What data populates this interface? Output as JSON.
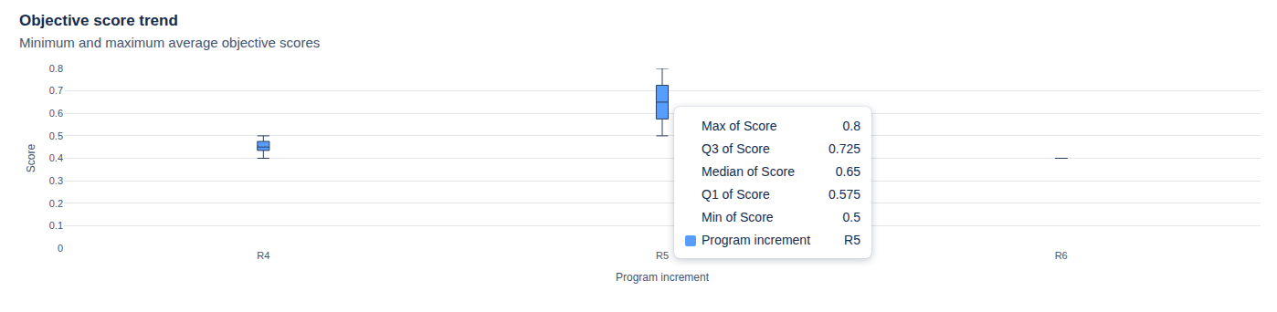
{
  "chart_data": {
    "type": "box",
    "title": "Objective score trend",
    "subtitle": "Minimum and maximum average objective scores",
    "x_label": "Program increment",
    "y_label": "Score",
    "categories": [
      "R4",
      "R5",
      "R6"
    ],
    "stats": {
      "min": [
        0.4,
        0.5,
        0.4
      ],
      "q1": [
        0.435,
        0.575,
        0.4
      ],
      "median": [
        0.45,
        0.65,
        0.4
      ],
      "q3": [
        0.475,
        0.725,
        0.4
      ],
      "max": [
        0.5,
        0.8,
        0.4
      ]
    },
    "color": "#579dff",
    "ylim": [
      0,
      0.8
    ],
    "yticks": [
      0,
      0.1,
      0.2,
      0.3,
      0.4,
      0.5,
      0.6,
      0.7,
      0.8
    ],
    "grid": true,
    "tooltip": {
      "rows": [
        {
          "label": "Max of Score",
          "value": 0.8
        },
        {
          "label": "Q3 of Score",
          "value": 0.725
        },
        {
          "label": "Median of Score",
          "value": 0.65
        },
        {
          "label": "Q1 of Score",
          "value": 0.575
        },
        {
          "label": "Min of Score",
          "value": 0.5
        }
      ],
      "legend_label": "Program increment",
      "legend_value": "R5"
    }
  }
}
